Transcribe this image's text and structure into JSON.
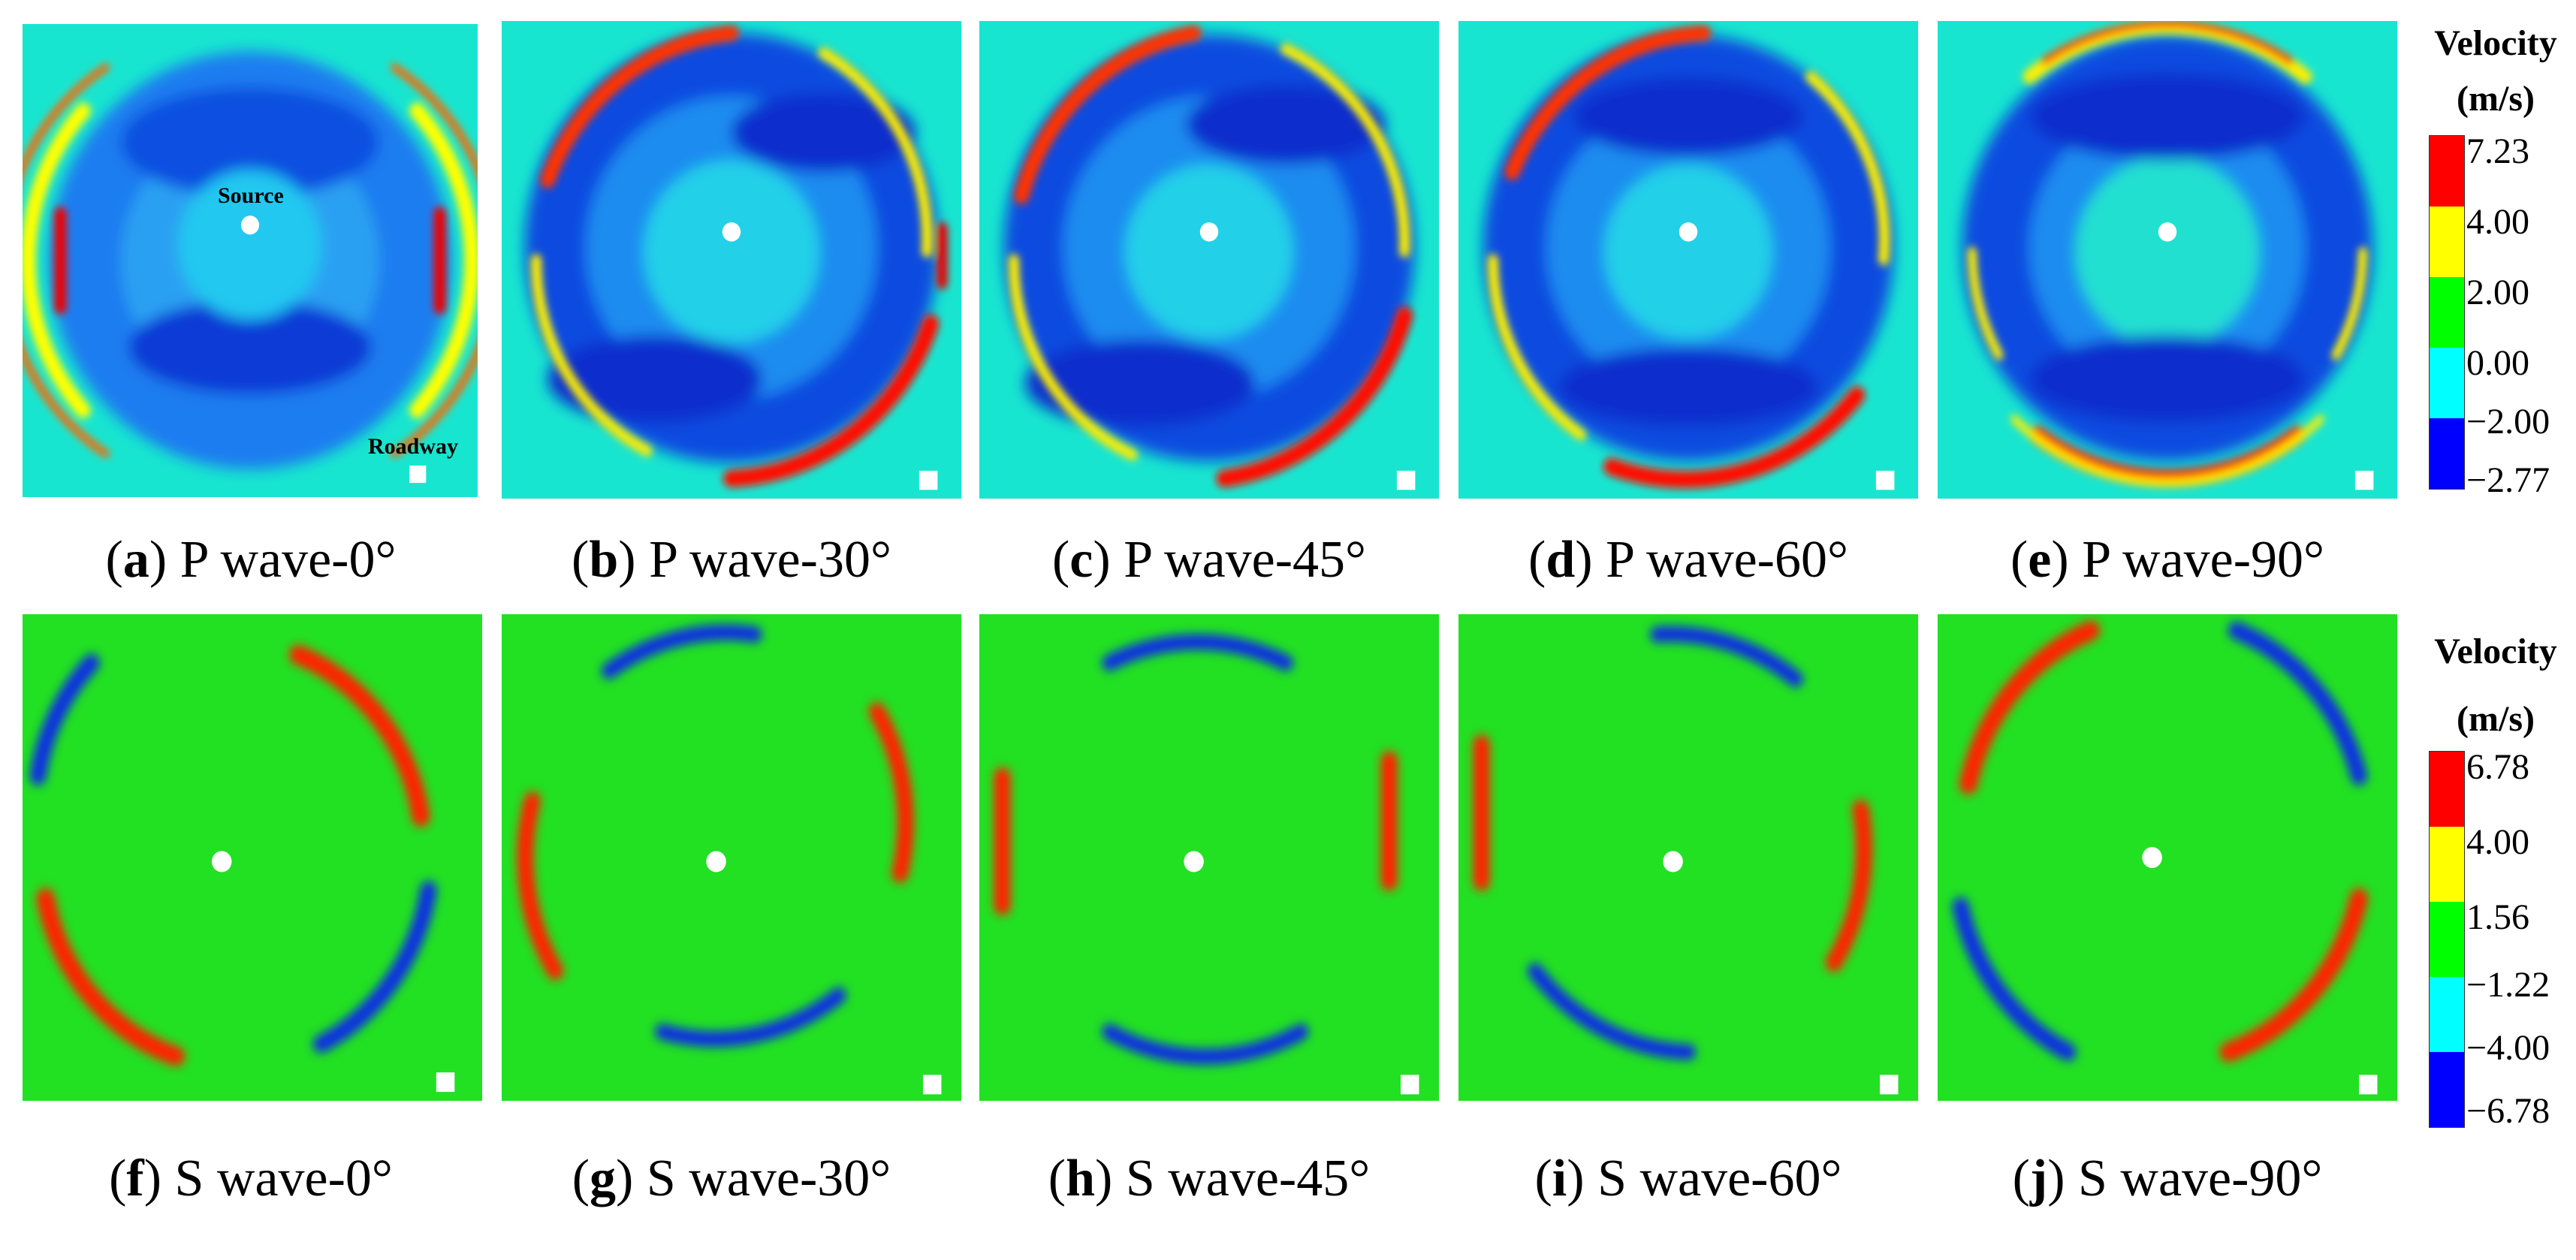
{
  "rows": [
    {
      "id": "p-wave",
      "panels": [
        {
          "letter": "a",
          "label": " P wave-0°"
        },
        {
          "letter": "b",
          "label": " P wave-30°"
        },
        {
          "letter": "c",
          "label": " P wave-45°"
        },
        {
          "letter": "d",
          "label": " P wave-60°"
        },
        {
          "letter": "e",
          "label": " P wave-90°"
        }
      ],
      "legend": {
        "title_line1": "Velocity",
        "title_line2": "(m/s)",
        "ticks": [
          "7.23",
          "4.00",
          "2.00",
          "0.00",
          "−2.00",
          "−2.77"
        ],
        "colors": [
          "#ff0000",
          "#ffff00",
          "#00ff00",
          "#00ffff",
          "#0000ff"
        ]
      }
    },
    {
      "id": "s-wave",
      "panels": [
        {
          "letter": "f",
          "label": " S wave-0°"
        },
        {
          "letter": "g",
          "label": " S wave-30°"
        },
        {
          "letter": "h",
          "label": " S wave-45°"
        },
        {
          "letter": "i",
          "label": " S wave-60°"
        },
        {
          "letter": "j",
          "label": " S wave-90°"
        }
      ],
      "legend": {
        "title_line1": "Velocity",
        "title_line2": "(m/s)",
        "ticks": [
          "6.78",
          "4.00",
          "1.56",
          "−1.22",
          "−4.00",
          "−6.78"
        ],
        "colors": [
          "#ff0000",
          "#ffff00",
          "#00ff00",
          "#00ffff",
          "#0000ff"
        ]
      }
    }
  ],
  "annotations": {
    "source": "Source",
    "roadway": "Roadway"
  }
}
